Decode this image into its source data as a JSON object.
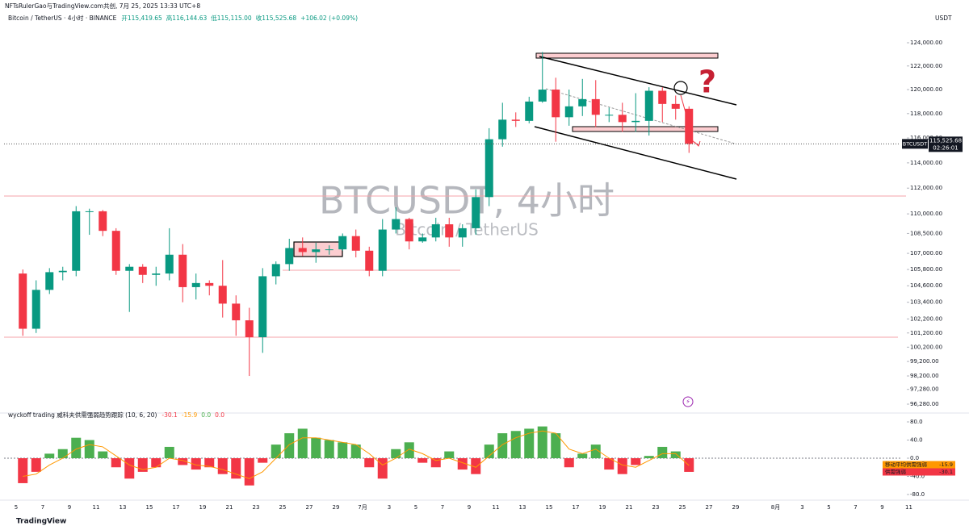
{
  "chart_data": {
    "type": "candlestick",
    "attribution": "NFTsRulerGao与TradingView.com共创, 7月 25, 2025 13:33 UTC+8",
    "legend": "Bitcoin / TetherUS · 4小时 · BINANCE",
    "ohlc": [
      "开115,419.65",
      "高116,144.63",
      "低115,115.00",
      "收115,525.68"
    ],
    "change": "+106.02 (+0.09%)",
    "currency": "USDT",
    "watermark": "BTCUSDT, 4小时",
    "watermark_sub": "Bitcoin / TetherUS",
    "annotation": "?",
    "symbol": "BTCUSDT",
    "last_label": "115,525.68",
    "countdown": "02:26:01",
    "footer": "TradingView",
    "log_scale": true,
    "up_color": "#089981",
    "down_color": "#f23645",
    "ylim": [
      96280,
      124000
    ],
    "yticks": [
      {
        "value": 124000,
        "label": "124,000.00"
      },
      {
        "value": 122000,
        "label": "122,000.00"
      },
      {
        "value": 120000,
        "label": "120,000.00"
      },
      {
        "value": 118000,
        "label": "118,000.00"
      },
      {
        "value": 116000,
        "label": "116,000.00"
      },
      {
        "value": 114000,
        "label": "114,000.00"
      },
      {
        "value": 112000,
        "label": "112,000.00"
      },
      {
        "value": 110000,
        "label": "110,000.00"
      },
      {
        "value": 108500,
        "label": "108,500.00"
      },
      {
        "value": 107000,
        "label": "107,000.00"
      },
      {
        "value": 105800,
        "label": "105,800.00"
      },
      {
        "value": 104600,
        "label": "104,600.00"
      },
      {
        "value": 103400,
        "label": "103,400.00"
      },
      {
        "value": 102200,
        "label": "102,200.00"
      },
      {
        "value": 101200,
        "label": "101,200.00"
      },
      {
        "value": 100200,
        "label": "100,200.00"
      },
      {
        "value": 99200,
        "label": "99,200.00"
      },
      {
        "value": 98200,
        "label": "98,200.00"
      },
      {
        "value": 97280,
        "label": "97,280.00"
      },
      {
        "value": 96280,
        "label": "96,280.00"
      }
    ],
    "x_labels": [
      "5",
      "7",
      "9",
      "11",
      "13",
      "15",
      "17",
      "19",
      "21",
      "23",
      "25",
      "27",
      "29",
      "7月",
      "3",
      "5",
      "7",
      "9",
      "11",
      "13",
      "15",
      "17",
      "19",
      "21",
      "23",
      "25",
      "27",
      "29",
      "8月",
      "3",
      "5",
      "7",
      "9",
      "11"
    ],
    "candles": [
      [
        105500,
        105800,
        101000,
        101500
      ],
      [
        101500,
        105000,
        101200,
        104300
      ],
      [
        104300,
        105900,
        104000,
        105600
      ],
      [
        105600,
        106000,
        105000,
        105700
      ],
      [
        105700,
        110600,
        105300,
        110200
      ],
      [
        110200,
        110400,
        108400,
        110200
      ],
      [
        110200,
        110300,
        108300,
        108700
      ],
      [
        108700,
        108900,
        105400,
        105700
      ],
      [
        105700,
        106200,
        102700,
        106000
      ],
      [
        106000,
        106200,
        104800,
        105400
      ],
      [
        105400,
        106000,
        104600,
        105500
      ],
      [
        105500,
        108900,
        105000,
        106900
      ],
      [
        106900,
        107700,
        103400,
        104500
      ],
      [
        104500,
        105500,
        103600,
        104800
      ],
      [
        104800,
        105000,
        103900,
        104600
      ],
      [
        104600,
        106500,
        102300,
        103300
      ],
      [
        103300,
        103900,
        101000,
        102100
      ],
      [
        102100,
        103000,
        98200,
        100900
      ],
      [
        100900,
        105900,
        99800,
        105300
      ],
      [
        105300,
        106400,
        104700,
        106200
      ],
      [
        106200,
        108100,
        105700,
        107400
      ],
      [
        107400,
        108200,
        106800,
        107100
      ],
      [
        107100,
        107800,
        106300,
        107300
      ],
      [
        107300,
        107600,
        106900,
        107300
      ],
      [
        107300,
        108500,
        107200,
        108300
      ],
      [
        108300,
        108800,
        106700,
        107200
      ],
      [
        107200,
        107500,
        105300,
        105700
      ],
      [
        105700,
        109600,
        105300,
        108800
      ],
      [
        108800,
        110500,
        108500,
        109600
      ],
      [
        109600,
        109700,
        107300,
        107900
      ],
      [
        107900,
        108500,
        107800,
        108200
      ],
      [
        108200,
        109700,
        107900,
        109200
      ],
      [
        109200,
        109700,
        107500,
        108200
      ],
      [
        108200,
        109200,
        107500,
        108900
      ],
      [
        108900,
        111900,
        108400,
        111300
      ],
      [
        111300,
        116800,
        110600,
        115900
      ],
      [
        115900,
        118900,
        115300,
        117500
      ],
      [
        117500,
        118100,
        116900,
        117400
      ],
      [
        117400,
        119400,
        117200,
        119000
      ],
      [
        119000,
        123200,
        118900,
        120000
      ],
      [
        120000,
        121000,
        115700,
        117700
      ],
      [
        117700,
        120000,
        117000,
        118600
      ],
      [
        118600,
        120900,
        117800,
        119200
      ],
      [
        119200,
        120800,
        116900,
        117900
      ],
      [
        117900,
        118500,
        117300,
        117900
      ],
      [
        117900,
        118900,
        116500,
        117300
      ],
      [
        117300,
        119700,
        116500,
        117400
      ],
      [
        117400,
        120200,
        116200,
        119900
      ],
      [
        119900,
        120200,
        117300,
        118800
      ],
      [
        118800,
        119500,
        117500,
        118400
      ],
      [
        118400,
        118600,
        114800,
        115525.68
      ]
    ],
    "indicator": {
      "title": "wyckoff trading 威科夫供需强弱趋势跟踪 (10, 6, 20)",
      "extras": [
        "0.0",
        "0.0"
      ],
      "ylim": [
        -80,
        80
      ],
      "yticks": [
        {
          "value": 80,
          "label": "80.0"
        },
        {
          "value": 40,
          "label": "40.0"
        },
        {
          "value": 0,
          "label": "0.0"
        },
        {
          "value": -40,
          "label": "-40.0"
        },
        {
          "value": -80,
          "label": "-80.0"
        }
      ],
      "series": [
        {
          "name": "供需强弱",
          "color": "#f23645",
          "up_color": "#4caf50",
          "values": [
            -55,
            -30,
            10,
            20,
            45,
            40,
            15,
            -20,
            -45,
            -30,
            -20,
            25,
            -15,
            -25,
            -20,
            -35,
            -45,
            -60,
            -10,
            30,
            55,
            65,
            45,
            40,
            35,
            30,
            -20,
            -45,
            20,
            35,
            -10,
            -20,
            15,
            -25,
            -35,
            30,
            55,
            60,
            65,
            70,
            55,
            -20,
            10,
            30,
            -25,
            -35,
            -15,
            5,
            25,
            15,
            -30.1
          ]
        },
        {
          "name": "移动平均供需强弱",
          "color": "#ff9800",
          "values": [
            -40,
            -35,
            -15,
            0,
            20,
            30,
            25,
            5,
            -15,
            -25,
            -20,
            0,
            -5,
            -15,
            -18,
            -25,
            -35,
            -45,
            -30,
            0,
            30,
            45,
            45,
            40,
            35,
            30,
            10,
            -15,
            0,
            20,
            10,
            -5,
            0,
            -10,
            -20,
            5,
            30,
            45,
            55,
            60,
            55,
            20,
            10,
            20,
            0,
            -15,
            -20,
            -5,
            10,
            10,
            -15.9
          ]
        }
      ]
    }
  }
}
